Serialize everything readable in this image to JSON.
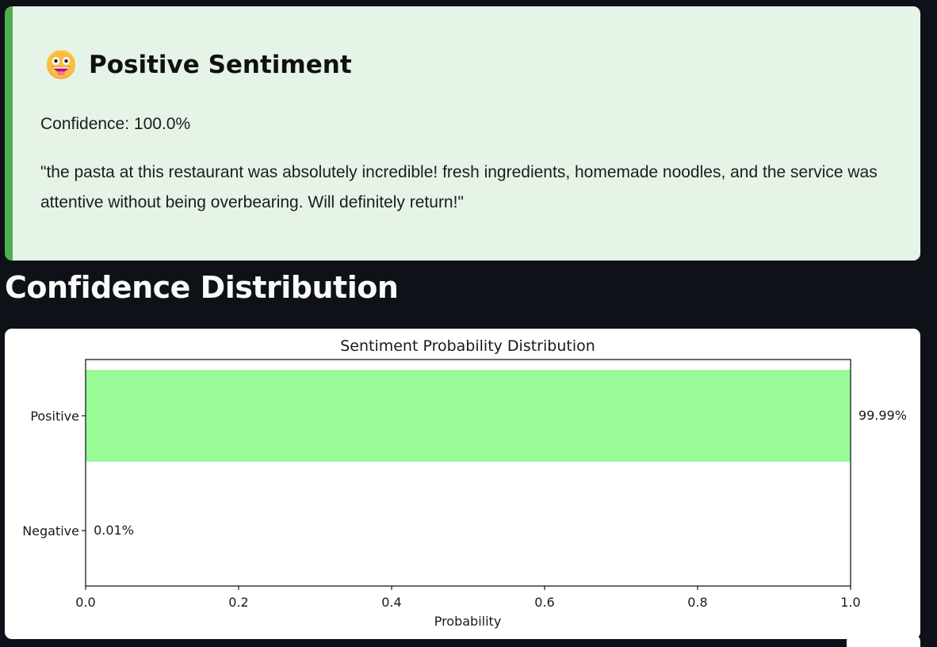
{
  "result": {
    "title": "Positive Sentiment",
    "confidence": "Confidence: 100.0%",
    "review_text": "\"the pasta at this restaurant was absolutely incredible!  fresh  ingredients, homemade noodles, and the service was attentive without being overbearing. Will definitely return!\"",
    "accent_color": "#4caf50",
    "background_color": "#e6f4e8",
    "icon": "grinning-face-icon"
  },
  "section": {
    "heading": "Confidence Distribution"
  },
  "chart_data": {
    "type": "bar",
    "orientation": "horizontal",
    "title": "Sentiment Probability Distribution",
    "xlabel": "Probability",
    "ylabel": "",
    "xlim": [
      0.0,
      1.0
    ],
    "x_ticks": [
      "0.0",
      "0.2",
      "0.4",
      "0.6",
      "0.8",
      "1.0"
    ],
    "categories": [
      "Positive",
      "Negative"
    ],
    "values": [
      0.9999,
      0.0001
    ],
    "value_labels": [
      "99.99%",
      "0.01%"
    ],
    "colors": [
      "#98fb98",
      "#ff6b6b"
    ],
    "grid": false,
    "legend": "none"
  }
}
